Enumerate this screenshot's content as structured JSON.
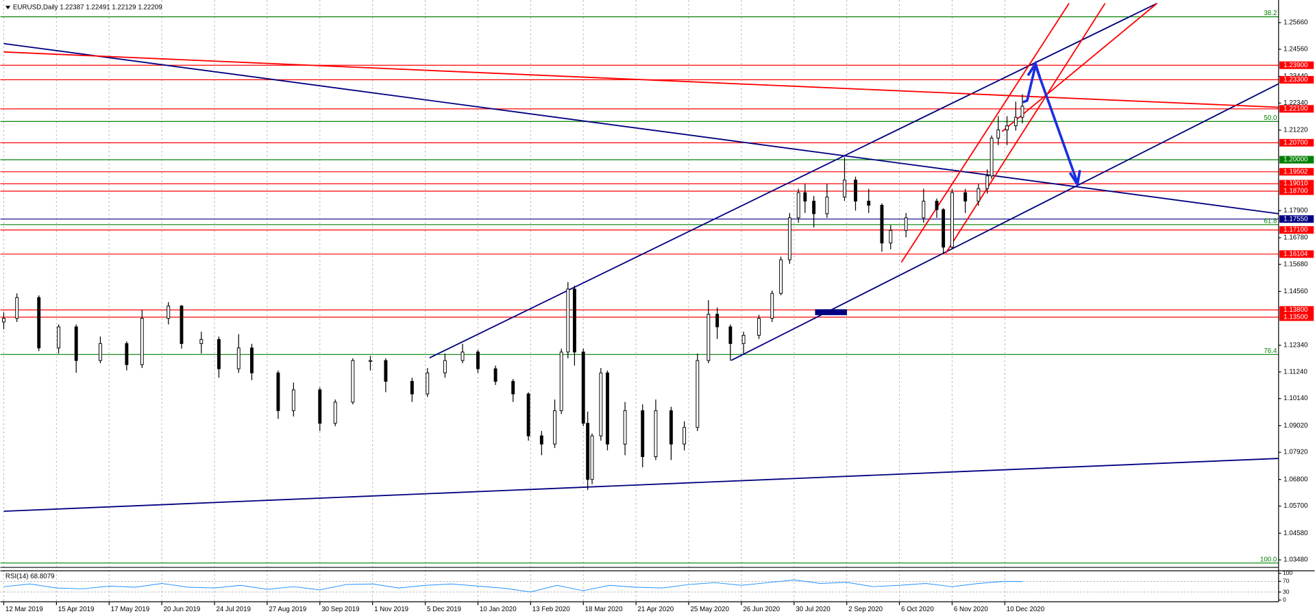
{
  "chart_data": {
    "type": "candlestick",
    "title": "EURUSD,Daily  1.22387 1.22491 1.22129 1.22209",
    "x": [
      0,
      6,
      16,
      25,
      33,
      44,
      56,
      63,
      75,
      81,
      90,
      98,
      107,
      113,
      125,
      132,
      144,
      151,
      159,
      167,
      174,
      186,
      193,
      201,
      209,
      216,
      224,
      232,
      239,
      245,
      251,
      254,
      257,
      260,
      264,
      266,
      268,
      272,
      275,
      283,
      291,
      297,
      304,
      310,
      316,
      321,
      325,
      331,
      337,
      344,
      350,
      354,
      358,
      362,
      365,
      369,
      375,
      383,
      388,
      394,
      400,
      404,
      411,
      419,
      425,
      428,
      432,
      438,
      444,
      448,
      450,
      453,
      457,
      461,
      464
    ],
    "open": [
      1.133,
      1.1345,
      1.1431,
      1.1223,
      1.131,
      1.1171,
      1.1241,
      1.1154,
      1.1345,
      1.1396,
      1.1241,
      1.1258,
      1.1137,
      1.1223,
      1.112,
      1.0964,
      1.105,
      1.0912,
      1.0999,
      1.1171,
      1.1171,
      1.1085,
      1.1033,
      1.112,
      1.1171,
      1.1206,
      1.1137,
      1.1085,
      1.1033,
      1.086,
      1.0826,
      1.0964,
      1.1206,
      1.1466,
      1.1206,
      1.0912,
      1.068,
      1.086,
      1.112,
      1.0826,
      1.0964,
      1.0774,
      1.0964,
      1.0826,
      1.0895,
      1.1171,
      1.1362,
      1.131,
      1.1241,
      1.1275,
      1.1345,
      1.1448,
      1.1587,
      1.176,
      1.1864,
      1.1829,
      1.1777,
      1.1846,
      1.1916,
      1.1829,
      1.1812,
      1.1656,
      1.1708,
      1.176,
      1.1829,
      1.1794,
      1.1639,
      1.1864,
      1.1829,
      1.1881,
      1.1933,
      1.2089,
      1.2123,
      1.214,
      1.2175
    ],
    "high": [
      1.137,
      1.1448,
      1.144,
      1.132,
      1.132,
      1.127,
      1.125,
      1.138,
      1.1412,
      1.14,
      1.129,
      1.127,
      1.128,
      1.124,
      1.113,
      1.108,
      1.106,
      1.101,
      1.118,
      1.119,
      1.118,
      1.11,
      1.114,
      1.12,
      1.124,
      1.1215,
      1.115,
      1.1095,
      1.104,
      1.088,
      1.101,
      1.122,
      1.1495,
      1.148,
      1.122,
      1.096,
      1.087,
      1.114,
      1.113,
      1.1,
      1.099,
      1.101,
      1.098,
      1.092,
      1.12,
      1.142,
      1.139,
      1.132,
      1.129,
      1.136,
      1.146,
      1.16,
      1.178,
      1.188,
      1.19,
      1.185,
      1.19,
      1.201,
      1.193,
      1.188,
      1.182,
      1.173,
      1.178,
      1.188,
      1.184,
      1.18,
      1.188,
      1.188,
      1.19,
      1.196,
      1.21,
      1.218,
      1.218,
      1.224,
      1.227
    ],
    "low": [
      1.13,
      1.133,
      1.121,
      1.12,
      1.112,
      1.116,
      1.113,
      1.114,
      1.132,
      1.122,
      1.12,
      1.11,
      1.112,
      1.109,
      1.093,
      1.094,
      1.088,
      1.09,
      1.099,
      1.113,
      1.104,
      1.1,
      1.102,
      1.11,
      1.116,
      1.112,
      1.107,
      1.1,
      1.084,
      1.078,
      1.081,
      1.095,
      1.118,
      1.115,
      1.09,
      1.0636,
      1.066,
      1.084,
      1.08,
      1.078,
      1.073,
      1.076,
      1.076,
      1.08,
      1.088,
      1.116,
      1.126,
      1.117,
      1.12,
      1.126,
      1.133,
      1.144,
      1.157,
      1.174,
      1.178,
      1.172,
      1.176,
      1.183,
      1.179,
      1.178,
      1.162,
      1.163,
      1.168,
      1.174,
      1.176,
      1.1612,
      1.163,
      1.178,
      1.181,
      1.186,
      1.192,
      1.206,
      1.206,
      1.212,
      1.215
    ],
    "close": [
      1.1345,
      1.1431,
      1.1223,
      1.131,
      1.1171,
      1.1241,
      1.1154,
      1.1345,
      1.1396,
      1.1241,
      1.1258,
      1.1137,
      1.1223,
      1.112,
      1.0964,
      1.105,
      1.0912,
      1.0999,
      1.1171,
      1.1171,
      1.1085,
      1.1033,
      1.112,
      1.1171,
      1.1206,
      1.1137,
      1.1085,
      1.1033,
      1.086,
      1.0826,
      1.0964,
      1.1206,
      1.1466,
      1.1206,
      1.0912,
      1.068,
      1.086,
      1.112,
      1.0826,
      1.0964,
      1.0774,
      1.0964,
      1.0826,
      1.0895,
      1.1171,
      1.1362,
      1.131,
      1.1241,
      1.1275,
      1.1345,
      1.1448,
      1.1587,
      1.176,
      1.1864,
      1.1829,
      1.1777,
      1.1846,
      1.1916,
      1.1829,
      1.1812,
      1.1656,
      1.1708,
      1.176,
      1.1829,
      1.1794,
      1.1639,
      1.1864,
      1.1829,
      1.1881,
      1.1933,
      1.2089,
      1.2123,
      1.214,
      1.2175,
      1.2221
    ],
    "up_color": "#ffffff",
    "down_color": "#000000",
    "xlim": [
      0,
      580.7
    ],
    "ylim": [
      1.0317,
      1.2642
    ],
    "grid": "x",
    "xticks": [
      {
        "value": 0,
        "label": "12 Mar 2019"
      },
      {
        "value": 24,
        "label": "15 Apr 2019"
      },
      {
        "value": 48,
        "label": "17 May 2019"
      },
      {
        "value": 72,
        "label": "20 Jun 2019"
      },
      {
        "value": 96,
        "label": "24 Jul 2019"
      },
      {
        "value": 120,
        "label": "27 Aug 2019"
      },
      {
        "value": 144,
        "label": "30 Sep 2019"
      },
      {
        "value": 168,
        "label": "1 Nov 2019"
      },
      {
        "value": 192,
        "label": "5 Dec 2019"
      },
      {
        "value": 216,
        "label": "10 Jan 2020"
      },
      {
        "value": 240,
        "label": "13 Feb 2020"
      },
      {
        "value": 264,
        "label": "18 Mar 2020"
      },
      {
        "value": 288,
        "label": "21 Apr 2020"
      },
      {
        "value": 312,
        "label": "25 May 2020"
      },
      {
        "value": 336,
        "label": "26 Jun 2020"
      },
      {
        "value": 360,
        "label": "30 Jul 2020"
      },
      {
        "value": 384,
        "label": "2 Sep 2020"
      },
      {
        "value": 408,
        "label": "6 Oct 2020"
      },
      {
        "value": 432,
        "label": "6 Nov 2020"
      },
      {
        "value": 456,
        "label": "10 Dec 2020"
      }
    ],
    "yticks": [
      {
        "value": 1.2566,
        "label": "1.25660"
      },
      {
        "value": 1.2456,
        "label": "1.24560"
      },
      {
        "value": 1.2344,
        "label": "1.23440"
      },
      {
        "value": 1.2234,
        "label": "1.22340"
      },
      {
        "value": 1.2122,
        "label": "1.21220"
      },
      {
        "value": 1.179,
        "label": "1.17900"
      },
      {
        "value": 1.1678,
        "label": "1.16780"
      },
      {
        "value": 1.1568,
        "label": "1.15680"
      },
      {
        "value": 1.1456,
        "label": "1.14560"
      },
      {
        "value": 1.1234,
        "label": "1.12340"
      },
      {
        "value": 1.1124,
        "label": "1.11240"
      },
      {
        "value": 1.1014,
        "label": "1.10140"
      },
      {
        "value": 1.0902,
        "label": "1.09020"
      },
      {
        "value": 1.0792,
        "label": "1.07920"
      },
      {
        "value": 1.068,
        "label": "1.06800"
      },
      {
        "value": 1.057,
        "label": "1.05700"
      },
      {
        "value": 1.0458,
        "label": "1.04580"
      },
      {
        "value": 1.0348,
        "label": "1.03480"
      }
    ],
    "levels": [
      {
        "value": 1.239,
        "label": "1.23900",
        "color": "#ff0000"
      },
      {
        "value": 1.233,
        "label": "1.23300",
        "color": "#ff0000"
      },
      {
        "value": 1.221,
        "label": "1.22100",
        "color": "#ff0000"
      },
      {
        "value": 1.207,
        "label": "1.20700",
        "color": "#ff0000"
      },
      {
        "value": 1.2,
        "label": "1.20000",
        "color": "#008000"
      },
      {
        "value": 1.19502,
        "label": "1.19502",
        "color": "#ff0000"
      },
      {
        "value": 1.1901,
        "label": "1.19010",
        "color": "#ff0000"
      },
      {
        "value": 1.187,
        "label": "1.18700",
        "color": "#ff0000"
      },
      {
        "value": 1.1755,
        "label": "1.17550",
        "color": "#000080"
      },
      {
        "value": 1.171,
        "label": "1.17100",
        "color": "#ff0000"
      },
      {
        "value": 1.16104,
        "label": "1.16104",
        "color": "#ff0000"
      },
      {
        "value": 1.138,
        "label": "1.13800",
        "color": "#ff0000"
      },
      {
        "value": 1.135,
        "label": "1.13500",
        "color": "#ff0000"
      }
    ],
    "fib_levels": [
      {
        "value": 1.259,
        "label": "38.2"
      },
      {
        "value": 1.2158,
        "label": "50.0"
      },
      {
        "value": 1.1732,
        "label": "61.8"
      },
      {
        "value": 1.1196,
        "label": "76.4"
      },
      {
        "value": 1.0335,
        "label": "100.0"
      }
    ],
    "fib_color": "#008000",
    "rsi": {
      "type": "line",
      "title": "RSI(14) 68.8079",
      "color": "#1e90ff",
      "ylim": [
        0,
        100
      ],
      "yticks": [
        0,
        30,
        70,
        100
      ],
      "levels": [
        30,
        70
      ],
      "x": [
        0,
        12,
        24,
        36,
        48,
        60,
        72,
        84,
        96,
        108,
        120,
        132,
        144,
        156,
        168,
        180,
        192,
        204,
        216,
        228,
        240,
        252,
        264,
        276,
        288,
        300,
        312,
        324,
        336,
        348,
        360,
        372,
        384,
        396,
        408,
        420,
        432,
        444,
        456,
        464
      ],
      "values": [
        50,
        60,
        45,
        42,
        52,
        48,
        62,
        48,
        45,
        55,
        40,
        50,
        38,
        58,
        60,
        45,
        55,
        60,
        52,
        44,
        30,
        55,
        35,
        55,
        48,
        45,
        58,
        65,
        55,
        65,
        75,
        62,
        66,
        50,
        55,
        62,
        50,
        62,
        70,
        68.8
      ]
    }
  }
}
